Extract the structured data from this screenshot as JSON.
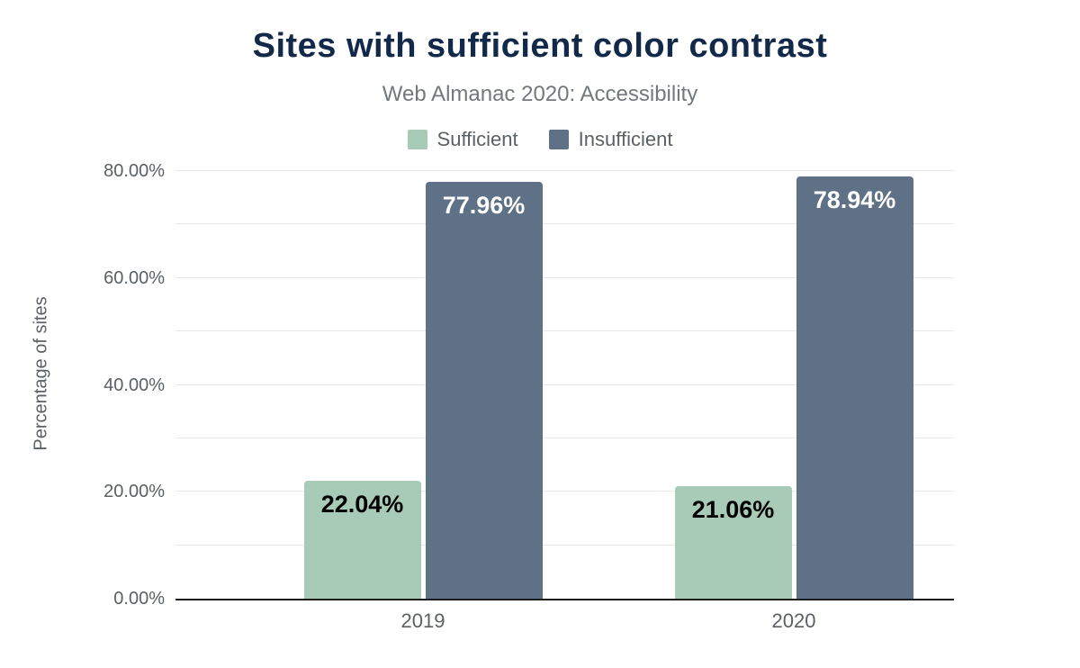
{
  "title": "Sites with sufficient color contrast",
  "subtitle": "Web Almanac 2020: Accessibility",
  "legend": {
    "items": [
      {
        "label": "Sufficient",
        "color": "#a8cbb8"
      },
      {
        "label": "Insufficient",
        "color": "#5e7186"
      }
    ]
  },
  "y_axis": {
    "title": "Percentage of sites",
    "ticks": [
      {
        "label": "80.00%",
        "value": 80
      },
      {
        "label": "60.00%",
        "value": 60
      },
      {
        "label": "40.00%",
        "value": 40
      },
      {
        "label": "20.00%",
        "value": 20
      },
      {
        "label": "0.00%",
        "value": 0
      }
    ]
  },
  "chart_data": {
    "type": "bar",
    "categories": [
      "2019",
      "2020"
    ],
    "series": [
      {
        "name": "Sufficient",
        "color": "#a8cbb8",
        "values": [
          22.04,
          21.06
        ],
        "data_labels": [
          "22.04%",
          "21.06%"
        ],
        "label_color": "#000000"
      },
      {
        "name": "Insufficient",
        "color": "#5e7186",
        "values": [
          77.96,
          78.94
        ],
        "data_labels": [
          "77.96%",
          "78.94%"
        ],
        "label_color": "#ffffff"
      }
    ],
    "title": "Sites with sufficient color contrast",
    "subtitle": "Web Almanac 2020: Accessibility",
    "xlabel": "",
    "ylabel": "Percentage of sites",
    "ylim": [
      0,
      80
    ],
    "grid": "horizontal",
    "legend_position": "top"
  },
  "colors": {
    "title": "#13294a",
    "subtitle": "#73787c",
    "axis_text": "#5b6066",
    "gridline": "#e9e9e9",
    "axis_line": "#1c1c1c",
    "background": "#ffffff"
  }
}
